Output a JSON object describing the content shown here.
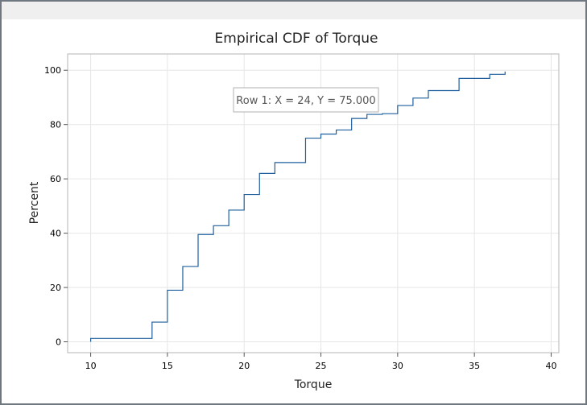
{
  "chart_data": {
    "type": "line",
    "subtype": "step",
    "title": "Empirical CDF of Torque",
    "xlabel": "Torque",
    "ylabel": "Percent",
    "xlim": [
      8.5,
      40.5
    ],
    "ylim": [
      -4,
      106
    ],
    "xticks": [
      10,
      15,
      20,
      25,
      30,
      35,
      40
    ],
    "yticks": [
      0,
      20,
      40,
      60,
      80,
      100
    ],
    "grid": true,
    "series": [
      {
        "x": [
          10,
          14,
          15,
          16,
          17,
          18,
          19,
          20,
          21,
          22,
          24,
          25,
          26,
          27,
          28,
          29,
          30,
          31,
          32,
          34,
          36,
          37
        ],
        "y": [
          1.25,
          7.25,
          19,
          27.75,
          39.5,
          42.75,
          48.5,
          54.25,
          62,
          66,
          75,
          76.5,
          78,
          82.25,
          83.75,
          84,
          87,
          89.75,
          92.5,
          97,
          98.5,
          99.5
        ]
      }
    ],
    "line_color": "#1f5f9e",
    "tooltip": "Row 1: X = 24, Y = 75.000"
  }
}
